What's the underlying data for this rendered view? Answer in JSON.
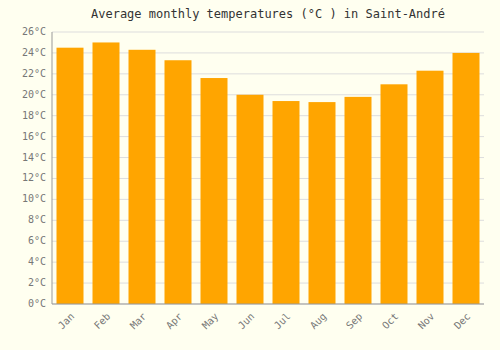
{
  "chart_data": {
    "type": "bar",
    "title": "Average monthly temperatures (°C ) in Saint-André",
    "categories": [
      "Jan",
      "Feb",
      "Mar",
      "Apr",
      "May",
      "Jun",
      "Jul",
      "Aug",
      "Sep",
      "Oct",
      "Nov",
      "Dec"
    ],
    "values": [
      24.5,
      25.0,
      24.3,
      23.3,
      21.6,
      20.0,
      19.4,
      19.3,
      19.8,
      21.0,
      22.3,
      24.0
    ],
    "color": "#FFA500",
    "ylim": [
      0,
      26
    ],
    "yticks": [
      {
        "value": 0,
        "label": "0°C"
      },
      {
        "value": 2,
        "label": "2°C"
      },
      {
        "value": 4,
        "label": "4°C"
      },
      {
        "value": 6,
        "label": "6°C"
      },
      {
        "value": 8,
        "label": "8°C"
      },
      {
        "value": 10,
        "label": "10°C"
      },
      {
        "value": 12,
        "label": "12°C"
      },
      {
        "value": 14,
        "label": "14°C"
      },
      {
        "value": 16,
        "label": "16°C"
      },
      {
        "value": 18,
        "label": "18°C"
      },
      {
        "value": 20,
        "label": "20°C"
      },
      {
        "value": 22,
        "label": "22°C"
      },
      {
        "value": 24,
        "label": "24°C"
      },
      {
        "value": 26,
        "label": "26°C"
      }
    ],
    "grid": true
  }
}
